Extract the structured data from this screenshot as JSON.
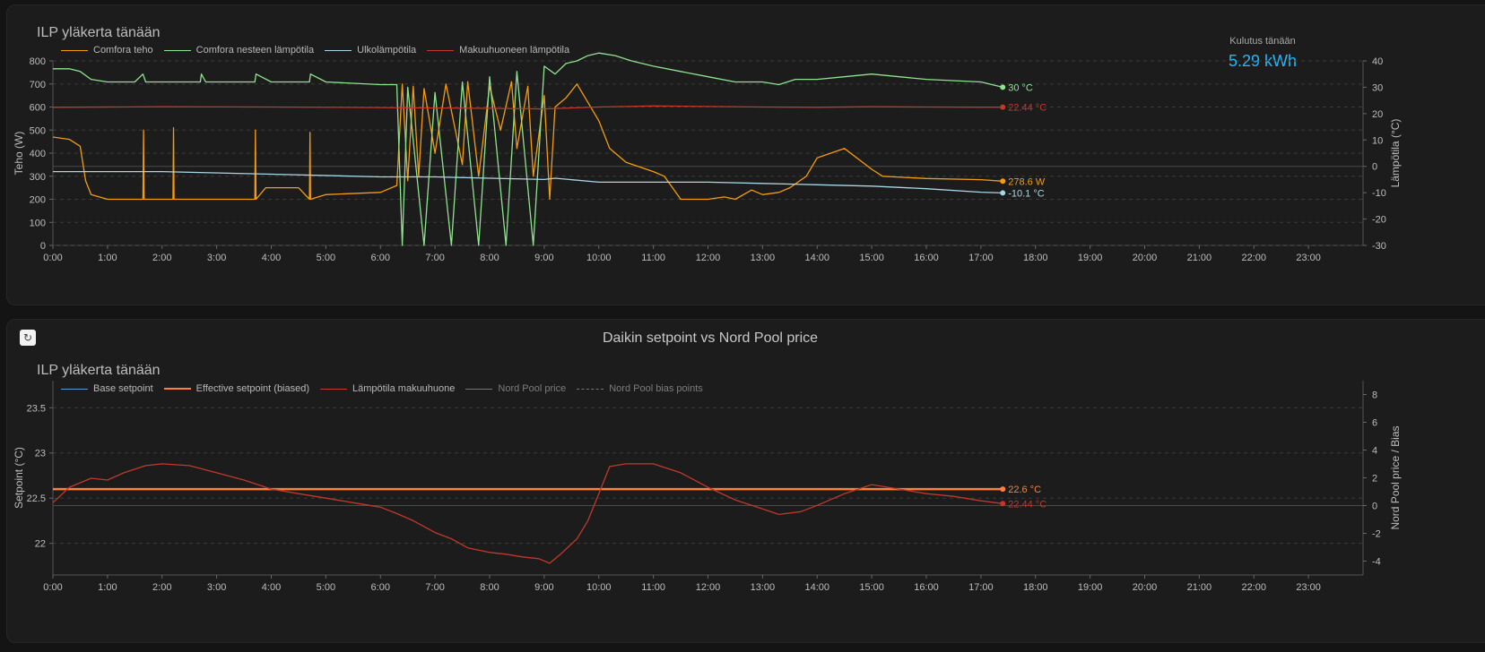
{
  "card1": {
    "title": "ILP yläkerta tänään",
    "kwh_label": "Kulutus tänään",
    "kwh_value": "5.29 kWh",
    "legend": [
      {
        "label": "Comfora teho",
        "color": "#f39c12"
      },
      {
        "label": "Comfora nesteen lämpötila",
        "color": "#8fe38f"
      },
      {
        "label": "Ulkolämpötila",
        "color": "#a9d6e5"
      },
      {
        "label": "Makuuhuoneen lämpötila",
        "color": "#c0392b"
      }
    ]
  },
  "card2": {
    "heading": "Daikin setpoint vs Nord Pool price",
    "title": "ILP yläkerta tänään",
    "refresh_icon": "↻",
    "legend": [
      {
        "label": "Base setpoint",
        "color": "#5b9bd5",
        "dim": false
      },
      {
        "label": "Effective setpoint (biased)",
        "color": "#ff7f3f",
        "dim": false
      },
      {
        "label": "Lämpötila makuuhuone",
        "color": "#c0392b",
        "dim": false
      },
      {
        "label": "Nord Pool price",
        "color": "#777777",
        "dim": true
      },
      {
        "label": "Nord Pool bias points",
        "color": "#777777",
        "dim": true
      }
    ]
  },
  "chart_data": [
    {
      "type": "line",
      "title": "ILP yläkerta tänään",
      "ylabel": "Teho (W)",
      "y2label": "Lämpötila (°C)",
      "ylim": [
        0,
        800
      ],
      "y2lim": [
        -30,
        40
      ],
      "yticks": [
        "0",
        "100",
        "200",
        "300",
        "400",
        "500",
        "600",
        "700",
        "800"
      ],
      "y2ticks": [
        "-30",
        "-20",
        "-10",
        "0",
        "10",
        "20",
        "30",
        "40"
      ],
      "xticks": [
        "0:00",
        "1:00",
        "2:00",
        "3:00",
        "4:00",
        "5:00",
        "6:00",
        "7:00",
        "8:00",
        "9:00",
        "10:00",
        "11:00",
        "12:00",
        "13:00",
        "14:00",
        "15:00",
        "16:00",
        "17:00",
        "18:00",
        "19:00",
        "20:00",
        "21:00",
        "22:00",
        "23:00"
      ],
      "grid": true,
      "series": [
        {
          "name": "Comfora teho",
          "axis": "left",
          "color": "#f39c12",
          "end_label": "278.6 W",
          "x": [
            0,
            0.3,
            0.5,
            0.6,
            0.7,
            1.0,
            1.5,
            1.65,
            1.66,
            1.67,
            2.0,
            2.2,
            2.21,
            2.22,
            3.0,
            3.7,
            3.71,
            3.72,
            3.9,
            4.5,
            4.7,
            4.71,
            4.72,
            5.0,
            6.0,
            6.3,
            6.4,
            6.5,
            6.6,
            6.7,
            6.8,
            7.0,
            7.2,
            7.5,
            7.6,
            7.8,
            8.0,
            8.2,
            8.4,
            8.5,
            8.7,
            8.8,
            9.0,
            9.1,
            9.2,
            9.4,
            9.6,
            9.8,
            10.0,
            10.2,
            10.5,
            11.0,
            11.2,
            11.5,
            12.0,
            12.3,
            12.5,
            12.8,
            13.0,
            13.3,
            13.5,
            13.8,
            14.0,
            14.5,
            15.0,
            15.2,
            16.0,
            17.0,
            17.4
          ],
          "y": [
            470,
            460,
            430,
            280,
            220,
            200,
            200,
            200,
            500,
            200,
            200,
            200,
            510,
            200,
            200,
            200,
            500,
            200,
            250,
            250,
            200,
            490,
            200,
            220,
            230,
            260,
            700,
            280,
            690,
            300,
            680,
            400,
            700,
            350,
            710,
            300,
            690,
            500,
            710,
            420,
            690,
            300,
            650,
            200,
            600,
            640,
            700,
            620,
            540,
            420,
            360,
            320,
            300,
            200,
            200,
            210,
            200,
            240,
            220,
            230,
            250,
            300,
            380,
            420,
            330,
            300,
            290,
            285,
            278.6
          ]
        },
        {
          "name": "Comfora nesteen lämpötila",
          "axis": "right",
          "color": "#8fe38f",
          "end_label": "30 °C",
          "x": [
            0,
            0.3,
            0.5,
            0.7,
            1.0,
            1.5,
            1.65,
            1.7,
            2.0,
            2.7,
            2.72,
            2.8,
            3.0,
            3.7,
            3.72,
            4.0,
            4.7,
            4.72,
            5.0,
            6.0,
            6.3,
            6.4,
            6.5,
            6.8,
            7.0,
            7.3,
            7.5,
            7.8,
            8.0,
            8.3,
            8.5,
            8.8,
            9.0,
            9.2,
            9.4,
            9.6,
            9.8,
            10.0,
            10.3,
            10.6,
            11.0,
            11.5,
            12.0,
            12.5,
            13.0,
            13.3,
            13.6,
            14.0,
            14.5,
            15.0,
            15.5,
            16.0,
            17.0,
            17.4
          ],
          "y": [
            37,
            37,
            36,
            33,
            32,
            32,
            35,
            32,
            32,
            32,
            35,
            32,
            32,
            32,
            35,
            32,
            32,
            35,
            32,
            31,
            31,
            -30,
            30,
            -30,
            28,
            -30,
            32,
            -30,
            34,
            -30,
            36,
            -30,
            38,
            35,
            39,
            40,
            42,
            43,
            42,
            40,
            38,
            36,
            34,
            32,
            32,
            31,
            33,
            33,
            34,
            35,
            34,
            33,
            32,
            30
          ]
        },
        {
          "name": "Ulkolämpötila",
          "axis": "right",
          "color": "#a9d6e5",
          "end_label": "-10.1 °C",
          "x": [
            0,
            2,
            4,
            6,
            7,
            8,
            9,
            9.2,
            10,
            11,
            12,
            13,
            14,
            15,
            16,
            17,
            17.4
          ],
          "y": [
            -2,
            -2,
            -3,
            -4,
            -4,
            -4.5,
            -5,
            -4.5,
            -6,
            -6,
            -6,
            -6.5,
            -7,
            -7.5,
            -8.5,
            -9.8,
            -10.1
          ]
        },
        {
          "name": "Makuuhuoneen lämpötila",
          "axis": "right",
          "color": "#c0392b",
          "end_label": "22.44 °C",
          "x": [
            0,
            2,
            4,
            6,
            8,
            9,
            10,
            11,
            12,
            13,
            14,
            15,
            16,
            17,
            17.4
          ],
          "y": [
            22.4,
            22.6,
            22.5,
            22.3,
            22.0,
            21.8,
            22.5,
            22.9,
            22.7,
            22.5,
            22.4,
            22.6,
            22.5,
            22.44,
            22.44
          ]
        }
      ]
    },
    {
      "type": "line",
      "title": "ILP yläkerta tänään",
      "ylabel": "Setpoint (°C)",
      "y2label": "Nord Pool price / Bias",
      "ylim": [
        21.65,
        23.8
      ],
      "y2lim": [
        -5,
        9
      ],
      "yticks": [
        "22",
        "22.5",
        "23",
        "23.5"
      ],
      "y2ticks": [
        "-4",
        "-2",
        "0",
        "2",
        "4",
        "6",
        "8"
      ],
      "xticks": [
        "0:00",
        "1:00",
        "2:00",
        "3:00",
        "4:00",
        "5:00",
        "6:00",
        "7:00",
        "8:00",
        "9:00",
        "10:00",
        "11:00",
        "12:00",
        "13:00",
        "14:00",
        "15:00",
        "16:00",
        "17:00",
        "18:00",
        "19:00",
        "20:00",
        "21:00",
        "22:00",
        "23:00"
      ],
      "grid": true,
      "series": [
        {
          "name": "Effective setpoint (biased)",
          "axis": "left",
          "color": "#ff7f3f",
          "end_label": "22.6 °C",
          "x": [
            0,
            17.4
          ],
          "y": [
            22.6,
            22.6
          ]
        },
        {
          "name": "Lämpötila makuuhuone",
          "axis": "left",
          "color": "#c0392b",
          "end_label": "22.44 °C",
          "x": [
            0,
            0.3,
            0.7,
            1.0,
            1.3,
            1.7,
            2.0,
            2.5,
            3.0,
            3.5,
            4.0,
            4.5,
            5.0,
            5.5,
            6.0,
            6.3,
            6.6,
            7.0,
            7.3,
            7.6,
            8.0,
            8.3,
            8.6,
            8.9,
            9.1,
            9.3,
            9.6,
            9.8,
            10.0,
            10.2,
            10.5,
            11.0,
            11.5,
            12.0,
            12.5,
            13.0,
            13.3,
            13.7,
            14.0,
            14.5,
            15.0,
            15.5,
            16.0,
            16.5,
            17.0,
            17.4
          ],
          "y": [
            22.45,
            22.62,
            22.72,
            22.7,
            22.78,
            22.86,
            22.88,
            22.86,
            22.78,
            22.7,
            22.6,
            22.55,
            22.5,
            22.45,
            22.4,
            22.33,
            22.25,
            22.12,
            22.05,
            21.95,
            21.9,
            21.88,
            21.85,
            21.83,
            21.78,
            21.88,
            22.05,
            22.25,
            22.55,
            22.85,
            22.88,
            22.88,
            22.78,
            22.62,
            22.48,
            22.38,
            22.32,
            22.35,
            22.42,
            22.55,
            22.65,
            22.6,
            22.55,
            22.52,
            22.47,
            22.44
          ]
        }
      ]
    }
  ]
}
